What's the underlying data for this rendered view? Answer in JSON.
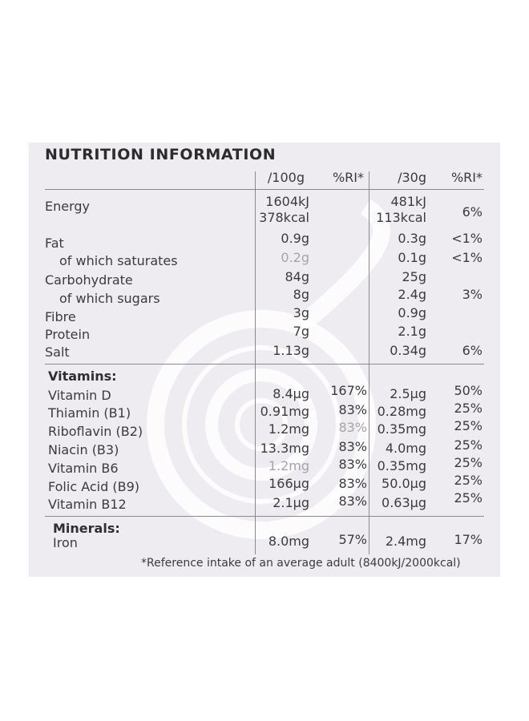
{
  "title": "NUTRITION INFORMATION",
  "headers": {
    "per100": "/100g",
    "ri100": "%RI*",
    "per30": "/30g",
    "ri30": "%RI*"
  },
  "nutrients": [
    {
      "label": "Energy",
      "v100": "1604kJ",
      "v30": "481kJ",
      "ri30": ""
    },
    {
      "label": "",
      "v100": "378kcal",
      "v30": "113kcal",
      "ri30": "6%"
    },
    {
      "label": "Fat",
      "v100": "0.9g",
      "v30": "0.3g",
      "ri30": "<1%"
    },
    {
      "label": "of which saturates",
      "v100": "0.2g",
      "v30": "0.1g",
      "ri30": "<1%"
    },
    {
      "label": "Carbohydrate",
      "v100": "84g",
      "v30": "25g",
      "ri30": ""
    },
    {
      "label": "of which sugars",
      "v100": "8g",
      "v30": "2.4g",
      "ri30": "3%"
    },
    {
      "label": "Fibre",
      "v100": "3g",
      "v30": "0.9g",
      "ri30": ""
    },
    {
      "label": "Protein",
      "v100": "7g",
      "v30": "2.1g",
      "ri30": ""
    },
    {
      "label": "Salt",
      "v100": "1.13g",
      "v30": "0.34g",
      "ri30": "6%"
    }
  ],
  "vitamins_heading": "Vitamins:",
  "vitamins": [
    {
      "label": "Vitamin D",
      "v100": "8.4µg",
      "ri100": "167%",
      "v30": "2.5µg",
      "ri30": "50%"
    },
    {
      "label": "Thiamin (B1)",
      "v100": "0.91mg",
      "ri100": "83%",
      "v30": "0.28mg",
      "ri30": "25%"
    },
    {
      "label": "Riboflavin (B2)",
      "v100": "1.2mg",
      "ri100": "83%",
      "v30": "0.35mg",
      "ri30": "25%"
    },
    {
      "label": "Niacin (B3)",
      "v100": "13.3mg",
      "ri100": "83%",
      "v30": "4.0mg",
      "ri30": "25%"
    },
    {
      "label": "Vitamin B6",
      "v100": "1.2mg",
      "ri100": "83%",
      "v30": "0.35mg",
      "ri30": "25%"
    },
    {
      "label": "Folic Acid (B9)",
      "v100": "166µg",
      "ri100": "83%",
      "v30": "50.0µg",
      "ri30": "25%"
    },
    {
      "label": "Vitamin B12",
      "v100": "2.1µg",
      "ri100": "83%",
      "v30": "0.63µg",
      "ri30": "25%"
    }
  ],
  "minerals_heading": "Minerals:",
  "minerals": [
    {
      "label": "Iron",
      "v100": "8.0mg",
      "ri100": "57%",
      "v30": "2.4mg",
      "ri30": "17%"
    }
  ],
  "footnote": "*Reference intake of an average adult (8400kJ/2000kcal)",
  "colors": {
    "panel": "#eeecf0",
    "text": "#3b3b3b",
    "watermark": "#ffffff"
  }
}
